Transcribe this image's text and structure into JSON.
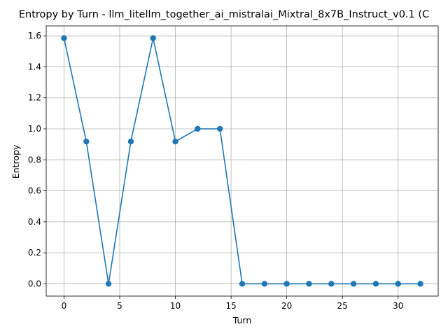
{
  "chart_data": {
    "type": "line",
    "title": "Entropy by Turn - llm_litellm_together_ai_mistralai_Mixtral_8x7B_Instruct_v0.1 (C",
    "xlabel": "Turn",
    "ylabel": "Entropy",
    "x": [
      0,
      2,
      4,
      6,
      8,
      10,
      12,
      14,
      16,
      18,
      20,
      22,
      24,
      26,
      28,
      30,
      32
    ],
    "series": [
      {
        "values": [
          1.585,
          0.918,
          0.0,
          0.918,
          1.585,
          0.918,
          1.0,
          1.0,
          0.0,
          0.0,
          0.0,
          0.0,
          0.0,
          0.0,
          0.0,
          0.0,
          0.0
        ]
      }
    ],
    "xlim": [
      -1.6,
      33.6
    ],
    "ylim": [
      -0.0793,
      1.664
    ],
    "xticks": [
      0,
      5,
      10,
      15,
      20,
      25,
      30
    ],
    "yticks": [
      0.0,
      0.2,
      0.4,
      0.6,
      0.8,
      1.0,
      1.2,
      1.4,
      1.6
    ],
    "xtick_labels": [
      "0",
      "5",
      "10",
      "15",
      "20",
      "25",
      "30"
    ],
    "ytick_labels": [
      "0.0",
      "0.2",
      "0.4",
      "0.6",
      "0.8",
      "1.0",
      "1.2",
      "1.4",
      "1.6"
    ],
    "grid": true,
    "marker": "circle",
    "line_color": "#1f77b4"
  }
}
